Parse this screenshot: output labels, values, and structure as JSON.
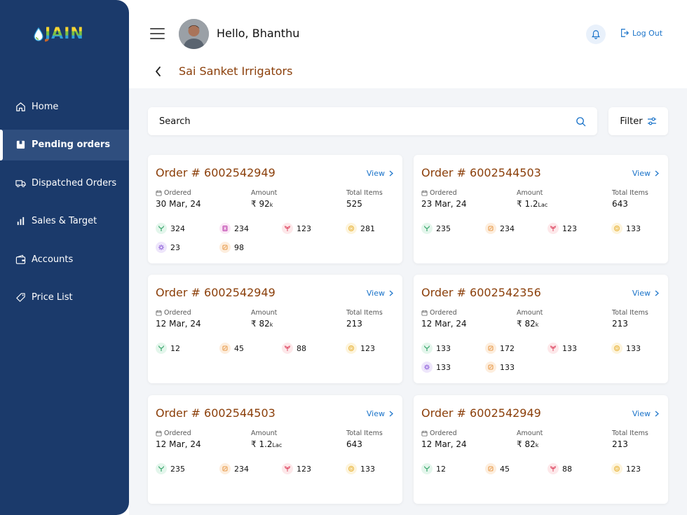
{
  "brand": {
    "logo_text": "JAIN"
  },
  "sidebar": {
    "items": [
      {
        "label": "Home",
        "icon": "home-icon",
        "active": false
      },
      {
        "label": "Pending orders",
        "icon": "box-icon",
        "active": true
      },
      {
        "label": "Dispatched Orders",
        "icon": "truck-icon",
        "active": false
      },
      {
        "label": "Sales & Target",
        "icon": "bar-chart-icon",
        "active": false
      },
      {
        "label": "Accounts",
        "icon": "wallet-icon",
        "active": false
      },
      {
        "label": "Price List",
        "icon": "tag-icon",
        "active": false
      }
    ]
  },
  "header": {
    "greeting": "Hello, Bhanthu",
    "logout_label": "Log Out",
    "page_title": "Sai Sanket Irrigators"
  },
  "toolbar": {
    "search_label": "Search",
    "filter_label": "Filter"
  },
  "labels": {
    "ordered": "Ordered",
    "amount": "Amount",
    "total_items": "Total Items",
    "view": "View"
  },
  "orders": [
    {
      "title": "Order # 6002542949",
      "ordered": "30 Mar, 24",
      "amount": "₹ 92",
      "amount_unit": "k",
      "total_items": "525",
      "stats": [
        "324",
        "234",
        "123",
        "281",
        "23",
        "98"
      ]
    },
    {
      "title": "Order # 6002544503",
      "ordered": "23 Mar, 24",
      "amount": "₹ 1.2",
      "amount_unit": "Lac",
      "total_items": "643",
      "stats": [
        "235",
        "234",
        "123",
        "133"
      ]
    },
    {
      "title": "Order # 6002542949",
      "ordered": "12 Mar, 24",
      "amount": "₹ 82",
      "amount_unit": "k",
      "total_items": "213",
      "stats": [
        "12",
        "45",
        "88",
        "123"
      ]
    },
    {
      "title": "Order # 6002542356",
      "ordered": "12 Mar, 24",
      "amount": "₹ 82",
      "amount_unit": "k",
      "total_items": "213",
      "stats": [
        "133",
        "172",
        "133",
        "133",
        "133",
        "133"
      ]
    },
    {
      "title": "Order # 6002544503",
      "ordered": "12 Mar, 24",
      "amount": "₹ 1.2",
      "amount_unit": "Lac",
      "total_items": "643",
      "stats": [
        "235",
        "234",
        "123",
        "133"
      ]
    },
    {
      "title": "Order # 6002542949",
      "ordered": "12 Mar, 24",
      "amount": "₹ 82",
      "amount_unit": "k",
      "total_items": "213",
      "stats": [
        "12",
        "45",
        "88",
        "123"
      ]
    }
  ],
  "colors": {
    "sidebar_bg": "#1b3a6b",
    "title_brown": "#8b3f0a",
    "link_blue": "#1a73c9",
    "main_bg": "#f3f5f8"
  }
}
